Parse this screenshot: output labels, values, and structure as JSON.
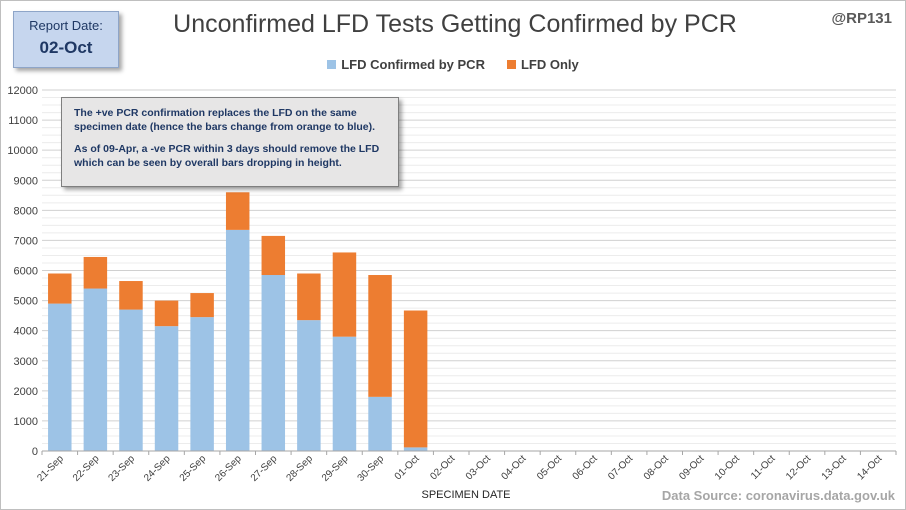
{
  "report": {
    "label": "Report Date:",
    "date": "02-Oct"
  },
  "handle": "@RP131",
  "source": "Data Source: coronavirus.data.gov.uk",
  "note": {
    "line1": "The +ve PCR confirmation replaces the LFD on the same specimen date (hence the bars change from orange to blue).",
    "line2": "As of 09-Apr, a -ve PCR within 3 days should remove the LFD which can be seen by overall bars dropping  in height."
  },
  "colors": {
    "confirmed": "#9dc3e6",
    "lfd_only": "#ed7d31",
    "grid": "#d9d9d9"
  },
  "chart_data": {
    "type": "bar",
    "stacked": true,
    "title": "Unconfirmed LFD Tests Getting Confirmed by PCR",
    "xlabel": "SPECIMEN DATE",
    "ylabel": "",
    "ylim": [
      0,
      12000
    ],
    "yticks": [
      0,
      1000,
      2000,
      3000,
      4000,
      5000,
      6000,
      7000,
      8000,
      9000,
      10000,
      11000,
      12000
    ],
    "legend_position": "top",
    "grid": true,
    "categories": [
      "21-Sep",
      "22-Sep",
      "23-Sep",
      "24-Sep",
      "25-Sep",
      "26-Sep",
      "27-Sep",
      "28-Sep",
      "29-Sep",
      "30-Sep",
      "01-Oct",
      "02-Oct",
      "03-Oct",
      "04-Oct",
      "05-Oct",
      "06-Oct",
      "07-Oct",
      "08-Oct",
      "09-Oct",
      "10-Oct",
      "11-Oct",
      "12-Oct",
      "13-Oct",
      "14-Oct"
    ],
    "series": [
      {
        "name": "LFD Confirmed by PCR",
        "values": [
          4900,
          5400,
          4700,
          4150,
          4450,
          7350,
          5850,
          4350,
          3800,
          1800,
          120,
          0,
          0,
          0,
          0,
          0,
          0,
          0,
          0,
          0,
          0,
          0,
          0,
          0
        ]
      },
      {
        "name": "LFD Only",
        "values": [
          1000,
          1050,
          950,
          850,
          800,
          1250,
          1300,
          1550,
          2800,
          4050,
          4550,
          0,
          0,
          0,
          0,
          0,
          0,
          0,
          0,
          0,
          0,
          0,
          0,
          0
        ]
      }
    ]
  }
}
